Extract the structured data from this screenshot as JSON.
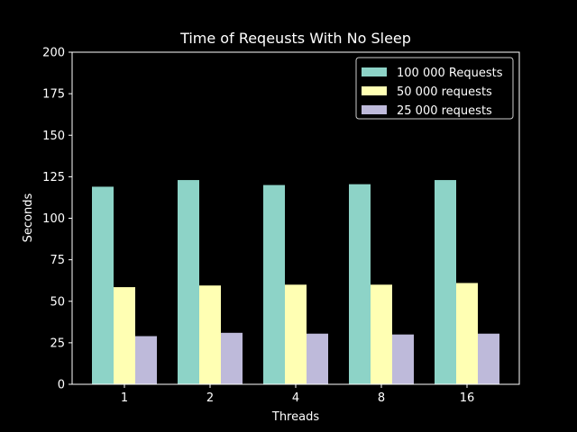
{
  "chart_data": {
    "type": "bar",
    "title": "Time of Reqeusts With No Sleep",
    "xlabel": "Threads",
    "ylabel": "Seconds",
    "categories": [
      "1",
      "2",
      "4",
      "8",
      "16"
    ],
    "ylim": [
      0,
      200
    ],
    "yticks": [
      0,
      25,
      50,
      75,
      100,
      125,
      150,
      175,
      200
    ],
    "grid": false,
    "legend_position": "top-right",
    "series": [
      {
        "name": "100 000 Requests",
        "color": "#8dd3c7",
        "values": [
          119,
          123,
          120,
          120.5,
          123
        ]
      },
      {
        "name": "50 000 requests",
        "color": "#ffffb3",
        "values": [
          58.5,
          59.5,
          60,
          60,
          61
        ]
      },
      {
        "name": "25 000 requests",
        "color": "#bebada",
        "values": [
          29,
          31,
          30.5,
          30,
          30.5
        ]
      }
    ]
  }
}
